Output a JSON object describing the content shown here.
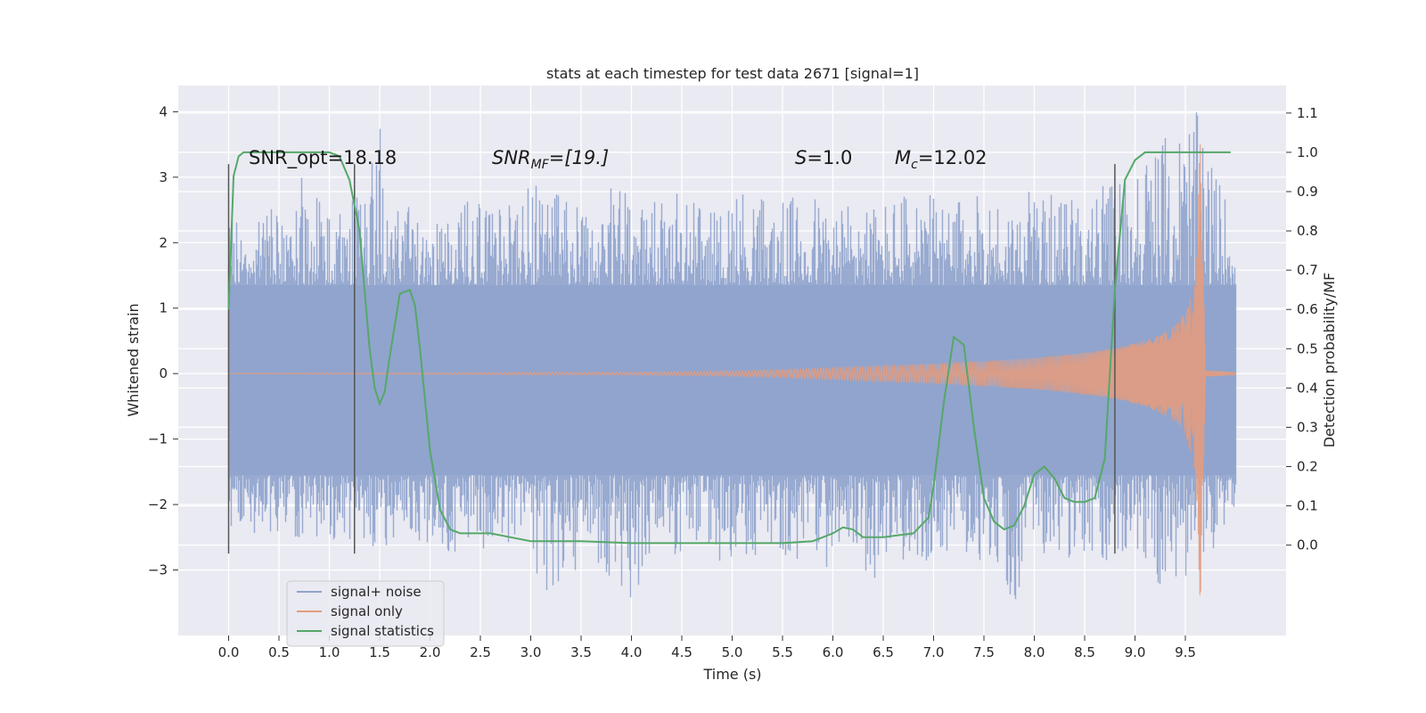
{
  "chart_data": {
    "type": "line",
    "title": "stats at each timestep for test data 2671 [signal=1]",
    "xlabel": "Time (s)",
    "ylabel_left": "Whitened strain",
    "ylabel_right": "Detection probability/MF",
    "xlim": [
      -0.5,
      10.5
    ],
    "ylim_left": [
      -4.0,
      4.4
    ],
    "ylim_right": [
      -0.23,
      1.17
    ],
    "x_ticks": [
      "0.0",
      "0.5",
      "1.0",
      "1.5",
      "2.0",
      "2.5",
      "3.0",
      "3.5",
      "4.0",
      "4.5",
      "5.0",
      "5.5",
      "6.0",
      "6.5",
      "7.0",
      "7.5",
      "8.0",
      "8.5",
      "9.0",
      "9.5"
    ],
    "y_ticks_left": [
      "4",
      "3",
      "2",
      "1",
      "0",
      "−1",
      "−2",
      "−3"
    ],
    "y_ticks_right": [
      "1.1",
      "1.0",
      "0.9",
      "0.8",
      "0.7",
      "0.6",
      "0.5",
      "0.4",
      "0.3",
      "0.2",
      "0.1",
      "0.0"
    ],
    "grid": true,
    "legend_position": "lower-left",
    "colors": {
      "background": "#eaeaf2",
      "noise": "#8fa3cc",
      "signal": "#e39c7f",
      "stats": "#55a868",
      "marker": "#555555"
    },
    "annotations": {
      "snr_opt": "SNR_opt=18.18",
      "snr_mf_base": "SNR",
      "snr_mf_sub": "MF",
      "snr_mf_rest": "=[19.]",
      "s_var": "S",
      "s_rest": "=1.0",
      "mc_base": "M",
      "mc_sub": "c",
      "mc_rest": "=12.02"
    },
    "vertical_markers_x": [
      0.0,
      1.25,
      8.8
    ],
    "series": [
      {
        "name": "signal+ noise",
        "axis": "left",
        "style": "noise-envelope",
        "x": [
          0.0,
          0.1,
          0.2,
          0.3,
          0.4,
          0.5,
          0.6,
          0.7,
          0.8,
          0.9,
          1.0,
          1.1,
          1.2,
          1.3,
          1.4,
          1.5,
          1.6,
          1.7,
          1.8,
          1.9,
          2.0,
          2.2,
          2.4,
          2.6,
          2.8,
          3.0,
          3.2,
          3.4,
          3.6,
          3.8,
          4.0,
          4.2,
          4.4,
          4.6,
          4.8,
          5.0,
          5.2,
          5.4,
          5.6,
          5.8,
          6.0,
          6.2,
          6.4,
          6.6,
          6.8,
          7.0,
          7.2,
          7.4,
          7.6,
          7.8,
          8.0,
          8.2,
          8.4,
          8.6,
          8.8,
          9.0,
          9.2,
          9.4,
          9.6,
          9.8,
          10.0
        ],
        "upper": [
          2.2,
          2.8,
          2.3,
          2.6,
          2.5,
          2.7,
          2.4,
          2.9,
          3.4,
          2.8,
          2.5,
          2.6,
          2.9,
          2.7,
          3.2,
          3.9,
          2.4,
          2.8,
          2.6,
          2.7,
          2.3,
          2.4,
          2.8,
          2.7,
          2.6,
          2.9,
          2.8,
          2.6,
          2.7,
          2.9,
          2.8,
          2.6,
          2.8,
          2.7,
          2.5,
          2.8,
          2.9,
          2.6,
          2.7,
          2.8,
          2.5,
          2.8,
          2.6,
          2.7,
          2.9,
          2.7,
          2.6,
          2.8,
          2.7,
          2.6,
          2.9,
          2.7,
          2.7,
          2.8,
          3.0,
          3.4,
          3.5,
          3.8,
          4.05,
          3.1,
          2.4
        ],
        "lower": [
          -2.6,
          -2.4,
          -2.8,
          -2.3,
          -2.5,
          -2.6,
          -2.4,
          -2.7,
          -2.5,
          -2.6,
          -3.1,
          -2.4,
          -2.6,
          -2.5,
          -2.7,
          -2.8,
          -2.6,
          -2.5,
          -2.4,
          -2.7,
          -2.6,
          -2.8,
          -2.9,
          -2.6,
          -2.7,
          -2.9,
          -3.5,
          -3.1,
          -2.8,
          -3.4,
          -3.5,
          -2.9,
          -2.8,
          -2.7,
          -2.9,
          -3.1,
          -2.8,
          -2.7,
          -2.9,
          -3.3,
          -2.8,
          -2.7,
          -3.2,
          -3.0,
          -2.8,
          -2.9,
          -2.7,
          -2.8,
          -3.0,
          -3.5,
          -2.8,
          -2.7,
          -2.9,
          -3.1,
          -2.8,
          -2.9,
          -3.2,
          -3.3,
          -3.5,
          -2.6,
          -2.0
        ]
      },
      {
        "name": "signal only",
        "axis": "left",
        "style": "chirp",
        "x": [
          0.0,
          1.0,
          2.0,
          3.0,
          4.0,
          5.0,
          5.5,
          6.0,
          6.5,
          7.0,
          7.5,
          8.0,
          8.5,
          8.8,
          9.0,
          9.2,
          9.4,
          9.5,
          9.6,
          9.65,
          9.7,
          10.0
        ],
        "amplitude": [
          0.0,
          0.01,
          0.01,
          0.02,
          0.02,
          0.04,
          0.06,
          0.09,
          0.12,
          0.15,
          0.19,
          0.24,
          0.32,
          0.39,
          0.46,
          0.56,
          0.74,
          0.92,
          1.5,
          3.65,
          0.05,
          0.02
        ]
      },
      {
        "name": "signal statistics",
        "axis": "right",
        "x": [
          0.0,
          0.05,
          0.1,
          0.15,
          0.2,
          0.3,
          0.5,
          0.8,
          1.0,
          1.1,
          1.2,
          1.3,
          1.4,
          1.45,
          1.5,
          1.55,
          1.6,
          1.7,
          1.8,
          1.85,
          1.9,
          2.0,
          2.1,
          2.2,
          2.3,
          2.4,
          2.6,
          2.8,
          3.0,
          3.5,
          4.0,
          4.5,
          5.0,
          5.5,
          5.8,
          6.0,
          6.1,
          6.2,
          6.3,
          6.5,
          6.8,
          6.95,
          7.0,
          7.1,
          7.2,
          7.3,
          7.4,
          7.5,
          7.6,
          7.7,
          7.8,
          7.9,
          8.0,
          8.1,
          8.2,
          8.3,
          8.4,
          8.5,
          8.6,
          8.7,
          8.8,
          8.9,
          9.0,
          9.1,
          9.2,
          9.4,
          9.6,
          9.8,
          9.95
        ],
        "y": [
          0.6,
          0.94,
          0.99,
          1.0,
          1.0,
          1.0,
          1.0,
          1.0,
          1.0,
          0.99,
          0.93,
          0.8,
          0.5,
          0.4,
          0.36,
          0.39,
          0.48,
          0.64,
          0.65,
          0.61,
          0.5,
          0.24,
          0.09,
          0.04,
          0.03,
          0.03,
          0.03,
          0.02,
          0.01,
          0.01,
          0.005,
          0.005,
          0.005,
          0.005,
          0.01,
          0.03,
          0.045,
          0.04,
          0.02,
          0.02,
          0.03,
          0.07,
          0.15,
          0.36,
          0.53,
          0.51,
          0.3,
          0.12,
          0.06,
          0.04,
          0.05,
          0.1,
          0.18,
          0.2,
          0.17,
          0.12,
          0.11,
          0.11,
          0.12,
          0.22,
          0.65,
          0.93,
          0.98,
          1.0,
          1.0,
          1.0,
          1.0,
          1.0,
          1.0
        ]
      }
    ]
  }
}
